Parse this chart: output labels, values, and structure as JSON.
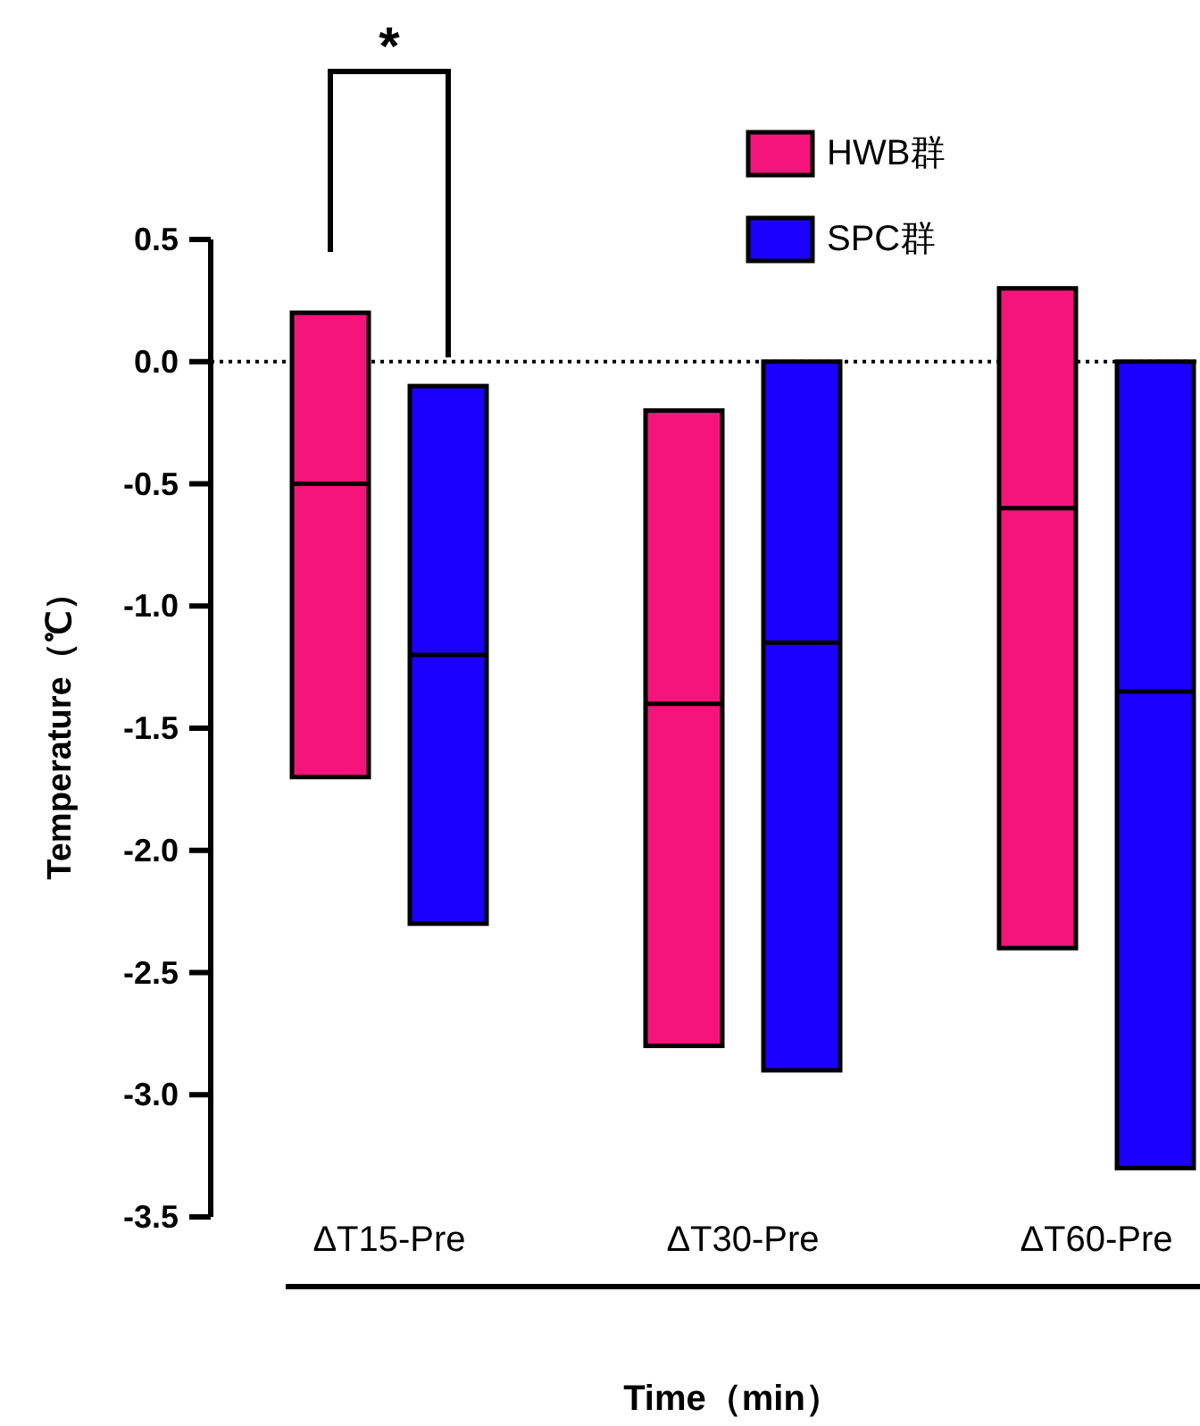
{
  "chart_data": {
    "type": "box",
    "ylabel": "Temperature（℃）",
    "xlabel": "Time（min）",
    "categories": [
      "ΔT15-Pre",
      "ΔT30-Pre",
      "ΔT60-Pre"
    ],
    "ylim": [
      -3.5,
      0.5
    ],
    "yticks": [
      {
        "value": 0.5,
        "label": "0.5"
      },
      {
        "value": 0,
        "label": "0.0"
      },
      {
        "value": -0.5,
        "label": "-0.5"
      },
      {
        "value": -1,
        "label": "-1.0"
      },
      {
        "value": -1.5,
        "label": "-1.5"
      },
      {
        "value": -2,
        "label": "-2.0"
      },
      {
        "value": -2.5,
        "label": "-2.5"
      },
      {
        "value": -3,
        "label": "-3.0"
      },
      {
        "value": -3.5,
        "label": "-3.5"
      }
    ],
    "series": [
      {
        "name": "HWB群",
        "color": "#f5147a",
        "boxes": [
          {
            "low": -1.7,
            "q1": -1.7,
            "median": -0.5,
            "q3": 0.2,
            "high": 0.2
          },
          {
            "low": -2.8,
            "q1": -2.8,
            "median": -1.4,
            "q3": -0.2,
            "high": -0.2
          },
          {
            "low": -2.4,
            "q1": -2.4,
            "median": -0.6,
            "q3": 0.3,
            "high": 0.3
          }
        ]
      },
      {
        "name": "SPC群",
        "color": "#1c00ff",
        "boxes": [
          {
            "low": -2.3,
            "q1": -2.3,
            "median": -1.2,
            "q3": -0.1,
            "high": -0.1
          },
          {
            "low": -2.9,
            "q1": -2.9,
            "median": -1.15,
            "q3": 0,
            "high": 0
          },
          {
            "low": -3.3,
            "q1": -3.3,
            "median": -1.35,
            "q3": 0,
            "high": 0
          }
        ]
      }
    ],
    "ref_lines": [
      {
        "axis": "y",
        "value": 0,
        "line_style": "dotted"
      }
    ],
    "annotations": [
      "*"
    ],
    "legend": "top right"
  }
}
